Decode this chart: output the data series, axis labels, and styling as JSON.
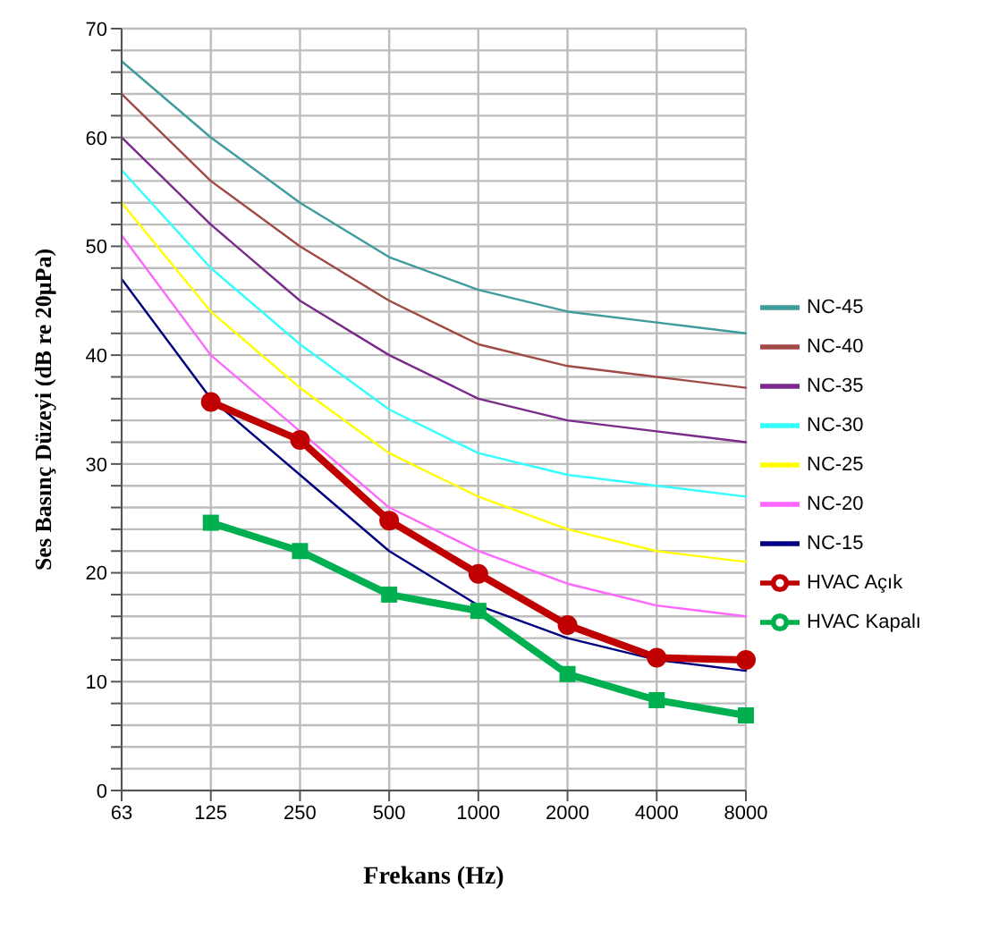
{
  "chart_data": {
    "type": "line",
    "xlabel": "Frekans (Hz)",
    "ylabel": "Ses Basınç Düzeyi (dB re 20μPa)",
    "categories": [
      "63",
      "125",
      "250",
      "500",
      "1000",
      "2000",
      "4000",
      "8000"
    ],
    "ylim": [
      0,
      70
    ],
    "yticks": [
      0,
      {
        "value": 2,
        "label": null
      },
      {
        "value": 4,
        "label": null
      },
      {
        "value": 6,
        "label": null
      },
      {
        "value": 8,
        "label": null
      },
      10,
      {
        "value": 12,
        "label": null
      },
      {
        "value": 14,
        "label": null
      },
      {
        "value": 16,
        "label": null
      },
      {
        "value": 18,
        "label": null
      },
      20,
      {
        "value": 22,
        "label": null
      },
      {
        "value": 24,
        "label": null
      },
      {
        "value": 26,
        "label": null
      },
      {
        "value": 28,
        "label": null
      },
      30,
      {
        "value": 32,
        "label": null
      },
      {
        "value": 34,
        "label": null
      },
      {
        "value": 36,
        "label": null
      },
      {
        "value": 38,
        "label": null
      },
      40,
      {
        "value": 42,
        "label": null
      },
      {
        "value": 44,
        "label": null
      },
      {
        "value": 46,
        "label": null
      },
      {
        "value": 48,
        "label": null
      },
      50,
      {
        "value": 52,
        "label": null
      },
      {
        "value": 54,
        "label": null
      },
      {
        "value": 56,
        "label": null
      },
      {
        "value": 58,
        "label": null
      },
      60,
      {
        "value": 62,
        "label": null
      },
      {
        "value": 64,
        "label": null
      },
      {
        "value": 66,
        "label": null
      },
      {
        "value": 68,
        "label": null
      },
      70
    ],
    "grid": true,
    "legend": "right",
    "line_style": "solid",
    "series": [
      {
        "name": "NC-45",
        "color": "#3f9c9c",
        "marker": "none",
        "values": [
          67,
          60,
          54,
          49,
          46,
          44,
          43,
          42
        ]
      },
      {
        "name": "NC-40",
        "color": "#a04a46",
        "marker": "none",
        "values": [
          64,
          56,
          50,
          45,
          41,
          39,
          38,
          37
        ]
      },
      {
        "name": "NC-35",
        "color": "#7a2a8a",
        "marker": "none",
        "values": [
          60,
          52,
          45,
          40,
          36,
          34,
          33,
          32
        ]
      },
      {
        "name": "NC-30",
        "color": "#33ffff",
        "marker": "none",
        "values": [
          57,
          48,
          41,
          35,
          31,
          29,
          28,
          27
        ]
      },
      {
        "name": "NC-25",
        "color": "#ffff00",
        "marker": "none",
        "values": [
          54,
          44,
          37,
          31,
          27,
          24,
          22,
          21
        ]
      },
      {
        "name": "NC-20",
        "color": "#ff66ff",
        "marker": "none",
        "values": [
          51,
          40,
          33,
          26,
          22,
          19,
          17,
          16
        ]
      },
      {
        "name": "NC-15",
        "color": "#000080",
        "marker": "none",
        "values": [
          47,
          36,
          29,
          22,
          17,
          14,
          12,
          11
        ]
      },
      {
        "name": "HVAC Açık",
        "color": "#c00000",
        "marker": "circle",
        "values": [
          null,
          35.7,
          32.2,
          24.8,
          19.9,
          15.2,
          12.2,
          12.0
        ]
      },
      {
        "name": "HVAC Kapalı",
        "color": "#00b050",
        "marker": "square",
        "values": [
          null,
          24.6,
          22.0,
          18.0,
          16.5,
          10.7,
          8.3,
          6.9
        ]
      }
    ]
  }
}
